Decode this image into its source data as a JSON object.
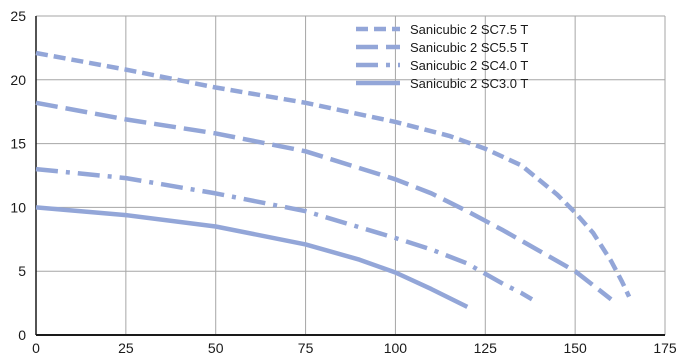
{
  "chart_data": {
    "type": "line",
    "title": "",
    "xlabel": "",
    "ylabel": "",
    "xlim": [
      0,
      175
    ],
    "ylim": [
      0,
      25
    ],
    "x_ticks": [
      0,
      25,
      50,
      75,
      100,
      125,
      150,
      175
    ],
    "y_ticks": [
      0,
      5,
      10,
      15,
      20,
      25
    ],
    "grid": true,
    "legend_position": "top-right",
    "line_color": "#93a6d8",
    "series": [
      {
        "name": "Sanicubic 2 SC7.5 T",
        "dash": "dashed-short",
        "x": [
          0,
          25,
          50,
          75,
          100,
          115,
          125,
          135,
          145,
          150,
          155,
          160,
          163,
          165
        ],
        "y": [
          22.1,
          20.8,
          19.4,
          18.2,
          16.7,
          15.6,
          14.6,
          13.3,
          11.0,
          9.6,
          8.0,
          5.8,
          4.2,
          3.0
        ]
      },
      {
        "name": "Sanicubic 2 SC5.5 T",
        "dash": "dashed-long",
        "x": [
          0,
          25,
          50,
          75,
          100,
          110,
          120,
          130,
          140,
          150,
          155,
          160
        ],
        "y": [
          18.2,
          16.9,
          15.8,
          14.4,
          12.2,
          11.1,
          9.7,
          8.2,
          6.6,
          5.0,
          3.9,
          2.8
        ]
      },
      {
        "name": "Sanicubic 2 SC4.0 T",
        "dash": "dash-dot",
        "x": [
          0,
          25,
          50,
          75,
          100,
          110,
          120,
          125,
          130,
          135,
          138
        ],
        "y": [
          13.0,
          12.3,
          11.1,
          9.7,
          7.6,
          6.7,
          5.6,
          4.8,
          4.0,
          3.3,
          2.8
        ]
      },
      {
        "name": "Sanicubic 2 SC3.0 T",
        "dash": "solid",
        "x": [
          0,
          25,
          50,
          75,
          90,
          100,
          110,
          120
        ],
        "y": [
          10.0,
          9.4,
          8.5,
          7.1,
          5.9,
          4.9,
          3.6,
          2.2
        ]
      }
    ]
  }
}
